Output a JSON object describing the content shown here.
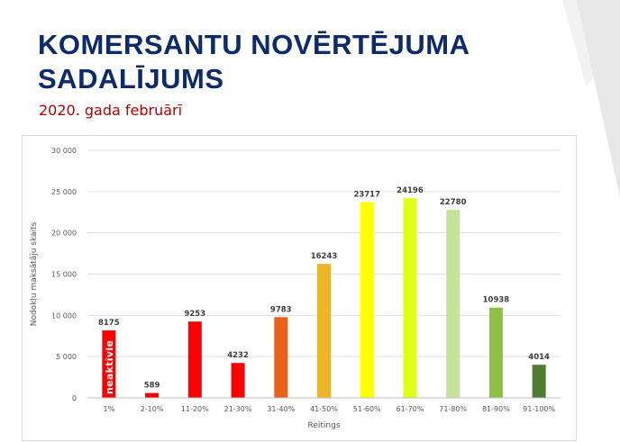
{
  "slide": {
    "title_line1": "KOMERSANTU NOVĒRTĒJUMA",
    "title_line2": "SADALĪJUMS",
    "subtitle": "2020. gada februārī"
  },
  "chart_data": {
    "type": "bar",
    "title": "",
    "xlabel": "Reitings",
    "ylabel": "Nodokļu maksātāju skaits",
    "ylim": [
      0,
      30000
    ],
    "yticks": [
      0,
      5000,
      10000,
      15000,
      20000,
      25000,
      30000
    ],
    "ytick_labels": [
      "0",
      "5 000",
      "10 000",
      "15 000",
      "20 000",
      "25 000",
      "30 000"
    ],
    "grid": true,
    "legend": "none",
    "categories": [
      "1%",
      "2-10%",
      "11-20%",
      "21-30%",
      "31-40%",
      "41-50%",
      "51-60%",
      "61-70%",
      "71-80%",
      "81-90%",
      "91-100%"
    ],
    "values": [
      8175,
      589,
      9253,
      4232,
      9783,
      16243,
      23717,
      24196,
      22780,
      10938,
      4014
    ],
    "value_labels": [
      "8175",
      "589",
      "9253",
      "4232",
      "9783",
      "16243",
      "23717",
      "24196",
      "22780",
      "10938",
      "4014"
    ],
    "colors": [
      "#ff0000",
      "#ff0000",
      "#ff0000",
      "#ff0000",
      "#e8621c",
      "#f0b428",
      "#ffff00",
      "#e0ff14",
      "#c4e49a",
      "#8dc043",
      "#4e7d30"
    ],
    "annotations": [
      {
        "category": "1%",
        "text": "neaktīvie",
        "orientation": "vertical",
        "placement": "inside-bar"
      }
    ]
  }
}
